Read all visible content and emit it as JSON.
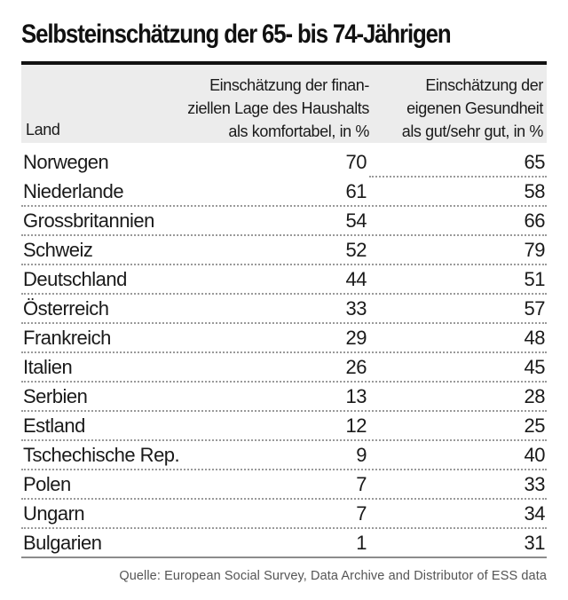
{
  "chart_data": {
    "type": "table",
    "title": "Selbsteinschätzung der 65- bis 74-Jährigen",
    "columns": [
      "Land",
      "Einschätzung der finanziellen Lage des Haushalts als komfortabel, in %",
      "Einschätzung der eigenen Gesundheit als gut/sehr gut, in %"
    ],
    "header_lines": {
      "land": "Land",
      "col1": [
        "Einschätzung der finan-",
        "ziellen Lage des Haushalts",
        "als komfortabel, in %"
      ],
      "col2": [
        "Einschätzung der",
        "eigenen Gesundheit",
        "als gut/sehr gut, in %"
      ]
    },
    "rows": [
      {
        "land": "Norwegen",
        "finanziell": "70",
        "gesundheit": "65"
      },
      {
        "land": "Niederlande",
        "finanziell": "61",
        "gesundheit": "58"
      },
      {
        "land": "Grossbritannien",
        "finanziell": "54",
        "gesundheit": "66"
      },
      {
        "land": "Schweiz",
        "finanziell": "52",
        "gesundheit": "79"
      },
      {
        "land": "Deutschland",
        "finanziell": "44",
        "gesundheit": "51"
      },
      {
        "land": "Österreich",
        "finanziell": "33",
        "gesundheit": "57"
      },
      {
        "land": "Frankreich",
        "finanziell": "29",
        "gesundheit": "48"
      },
      {
        "land": "Italien",
        "finanziell": "26",
        "gesundheit": "45"
      },
      {
        "land": "Serbien",
        "finanziell": "13",
        "gesundheit": "28"
      },
      {
        "land": "Estland",
        "finanziell": "12",
        "gesundheit": "25"
      },
      {
        "land": "Tschechische Rep.",
        "finanziell": "9",
        "gesundheit": "40"
      },
      {
        "land": "Polen",
        "finanziell": "7",
        "gesundheit": "33"
      },
      {
        "land": "Ungarn",
        "finanziell": "7",
        "gesundheit": "34"
      },
      {
        "land": "Bulgarien",
        "finanziell": "1",
        "gesundheit": "31"
      }
    ],
    "source": "Quelle: European Social Survey, Data Archive and Distributor of ESS data"
  }
}
